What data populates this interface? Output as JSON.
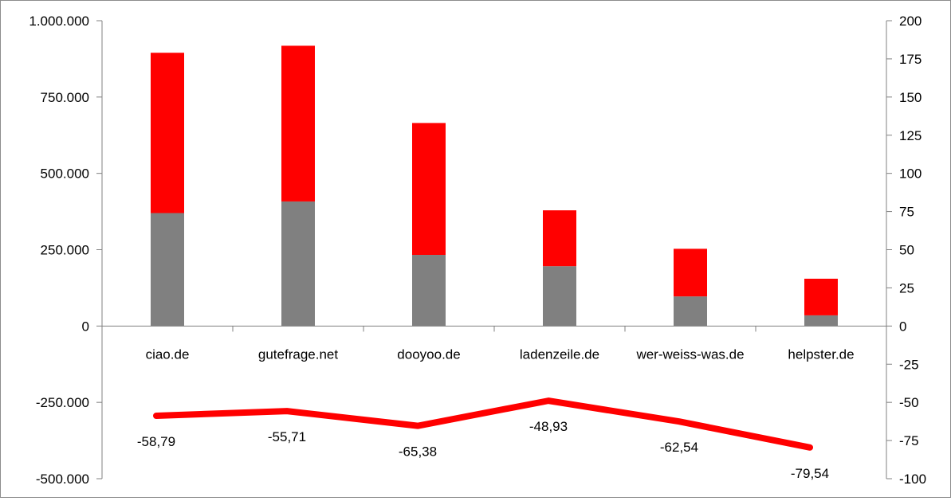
{
  "chart_data": {
    "type": "bar",
    "stacked": true,
    "categories": [
      "ciao.de",
      "gutefrage.net",
      "dooyoo.de",
      "ladenzeile.de",
      "wer-weiss-was.de",
      "helpster.de"
    ],
    "series": [
      {
        "axis": "left",
        "type": "bar",
        "color": "#808080",
        "values": [
          370000,
          408000,
          233000,
          196000,
          97000,
          35000
        ]
      },
      {
        "axis": "left",
        "type": "bar",
        "color": "#ff0000",
        "values": [
          525000,
          510000,
          432000,
          183000,
          156000,
          120000
        ]
      },
      {
        "axis": "right",
        "type": "line",
        "color": "#ff0000",
        "values": [
          -58.79,
          -55.71,
          -65.38,
          -48.93,
          -62.54,
          -79.54
        ],
        "labels": [
          "-58,79",
          "-55,71",
          "-65,38",
          "-48,93",
          "-62,54",
          "-79,54"
        ]
      }
    ],
    "y_left": {
      "range": [
        -500000,
        1000000
      ],
      "ticks": [
        1000000,
        750000,
        500000,
        250000,
        0,
        -250000,
        -500000
      ],
      "tick_labels": [
        "1.000.000",
        "750.000",
        "500.000",
        "250.000",
        "0",
        "-250.000",
        "-500.000"
      ]
    },
    "y_right": {
      "range": [
        -100,
        200
      ],
      "ticks": [
        200,
        175,
        150,
        125,
        100,
        75,
        50,
        25,
        0,
        -25,
        -50,
        -75,
        -100
      ],
      "tick_labels": [
        "200",
        "175",
        "150",
        "125",
        "100",
        "75",
        "50",
        "25",
        "0",
        "-25",
        "-50",
        "-75",
        "-100"
      ]
    },
    "grid": false,
    "legend": "none"
  }
}
